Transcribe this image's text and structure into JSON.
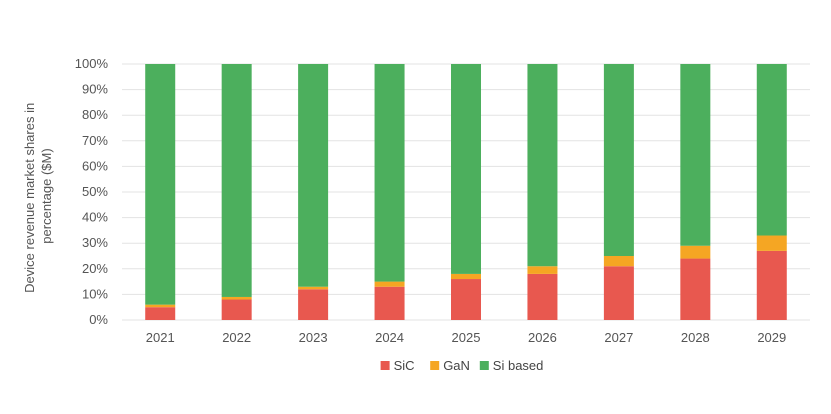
{
  "chart_data": {
    "type": "bar",
    "stacked": true,
    "normalized": true,
    "categories": [
      "2021",
      "2022",
      "2023",
      "2024",
      "2025",
      "2026",
      "2027",
      "2028",
      "2029"
    ],
    "series": [
      {
        "name": "SiC",
        "color": "#e8584f",
        "values": [
          5,
          8,
          12,
          13,
          16,
          18,
          21,
          24,
          27
        ]
      },
      {
        "name": "GaN",
        "color": "#f5a623",
        "values": [
          1,
          1,
          1,
          2,
          2,
          3,
          4,
          5,
          6
        ]
      },
      {
        "name": "Si based",
        "color": "#4caf5d",
        "values": [
          94,
          91,
          87,
          85,
          82,
          79,
          75,
          71,
          67
        ]
      }
    ],
    "ylabel_lines": [
      "Device revenue market shares in",
      "percentage ($M)"
    ],
    "xlabel": "",
    "ylim": [
      0,
      100
    ],
    "yticks": [
      "0%",
      "10%",
      "20%",
      "30%",
      "40%",
      "50%",
      "60%",
      "70%",
      "80%",
      "90%",
      "100%"
    ],
    "grid": true,
    "legend_position": "bottom-center"
  }
}
